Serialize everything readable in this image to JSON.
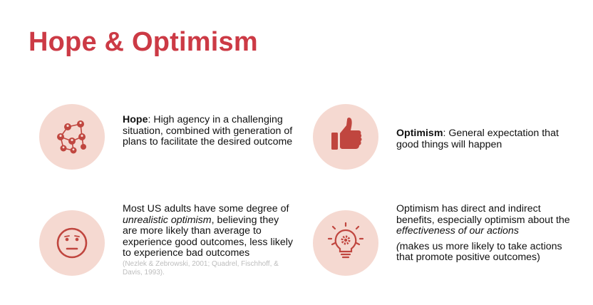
{
  "slide": {
    "title": "Hope & Optimism"
  },
  "hope": {
    "term": "Hope",
    "definition": ": High agency in a challenging situation, combined with generation of plans to facilitate the desired outcome",
    "icon": "network-people-icon"
  },
  "optimism": {
    "term": "Optimism",
    "definition": ": General expectation that good things will happen",
    "icon": "thumbs-up-icon"
  },
  "unrealistic": {
    "text_a": "Most US adults have some degree of ",
    "emphasis": "unrealistic optimism",
    "text_b": ", believing they are more likely than average to experience good outcomes, less likely to experience bad outcomes",
    "citation": "(Nezlek & Zebrowski, 2001; Quadrel, Fischhoff, & Davis, 1993).",
    "icon": "neutral-face-icon"
  },
  "benefits": {
    "text_a": "Optimism has direct and indirect benefits, especially optimism about the ",
    "emphasis": "effectiveness of our actions",
    "paren_open": "(",
    "note": "makes us more likely to take actions that promote positive outcomes)",
    "icon": "lightbulb-gear-icon"
  },
  "colors": {
    "title": "#cc3a45",
    "icon": "#c0463f",
    "circle": "#f5d9d1",
    "citation": "#bdbdbd"
  }
}
